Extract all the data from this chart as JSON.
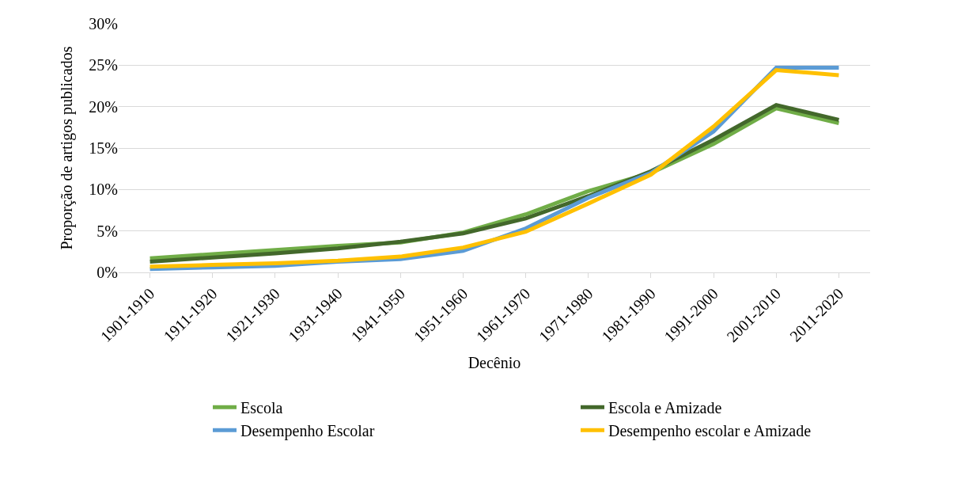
{
  "chart_data": {
    "type": "line",
    "xlabel": "Decênio",
    "ylabel": "Proporção de artigos publicados",
    "categories": [
      "1901-1910",
      "1911-1920",
      "1921-1930",
      "1931-1940",
      "1941-1950",
      "1951-1960",
      "1961-1970",
      "1971-1980",
      "1981-1990",
      "1991-2000",
      "2001-2010",
      "2011-2020"
    ],
    "series": [
      {
        "name": "Escola",
        "color": "#70ad47",
        "values": [
          1.7,
          2.2,
          2.7,
          3.2,
          3.6,
          4.8,
          7.0,
          9.8,
          12.0,
          15.5,
          19.8,
          18.0
        ]
      },
      {
        "name": "Escola e Amizade",
        "color": "#43682b",
        "values": [
          1.3,
          1.8,
          2.3,
          2.9,
          3.7,
          4.7,
          6.5,
          9.2,
          12.2,
          16.0,
          20.2,
          18.4
        ]
      },
      {
        "name": "Desempenho Escolar",
        "color": "#5b9bd5",
        "values": [
          0.4,
          0.6,
          0.8,
          1.3,
          1.6,
          2.6,
          5.3,
          9.0,
          12.0,
          17.0,
          24.7,
          24.7
        ]
      },
      {
        "name": "Desempenho escolar e Amizade",
        "color": "#ffc000",
        "values": [
          0.7,
          0.9,
          1.1,
          1.4,
          1.9,
          3.0,
          4.9,
          8.3,
          11.8,
          17.6,
          24.4,
          23.8
        ]
      }
    ],
    "ylim": [
      0,
      30
    ],
    "yticks": [
      {
        "value": 0,
        "label": "0%"
      },
      {
        "value": 5,
        "label": "5%"
      },
      {
        "value": 10,
        "label": "10%"
      },
      {
        "value": 15,
        "label": "15%"
      },
      {
        "value": 20,
        "label": "20%"
      },
      {
        "value": 25,
        "label": "25%"
      },
      {
        "value": 30,
        "label": "30%"
      }
    ],
    "grid": "y",
    "legend": "bottom",
    "marker": "none",
    "line_style": "solid"
  }
}
